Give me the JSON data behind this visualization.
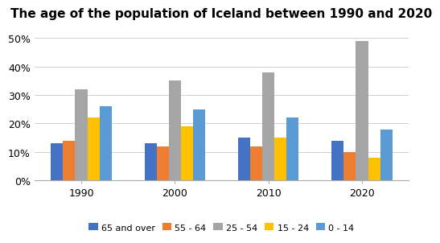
{
  "title": "The age of the population of Iceland between 1990 and 2020",
  "years": [
    1990,
    2000,
    2010,
    2020
  ],
  "categories": [
    "65 and over",
    "55 - 64",
    "25 - 54",
    "15 - 24",
    "0 - 14"
  ],
  "colors": [
    "#4472C4",
    "#ED7D31",
    "#A5A5A5",
    "#FFC000",
    "#5B9BD5"
  ],
  "values": {
    "65 and over": [
      13,
      13,
      15,
      14
    ],
    "55 - 64": [
      14,
      12,
      12,
      10
    ],
    "25 - 54": [
      32,
      35,
      38,
      49
    ],
    "15 - 24": [
      22,
      19,
      15,
      8
    ],
    "0 - 14": [
      26,
      25,
      22,
      18
    ]
  },
  "ylim": [
    0,
    55
  ],
  "yticks": [
    0,
    10,
    20,
    30,
    40,
    50
  ],
  "ytick_labels": [
    "0%",
    "10%",
    "20%",
    "30%",
    "40%",
    "50%"
  ],
  "bar_width": 0.13,
  "title_fontsize": 11,
  "tick_fontsize": 9,
  "legend_fontsize": 8
}
